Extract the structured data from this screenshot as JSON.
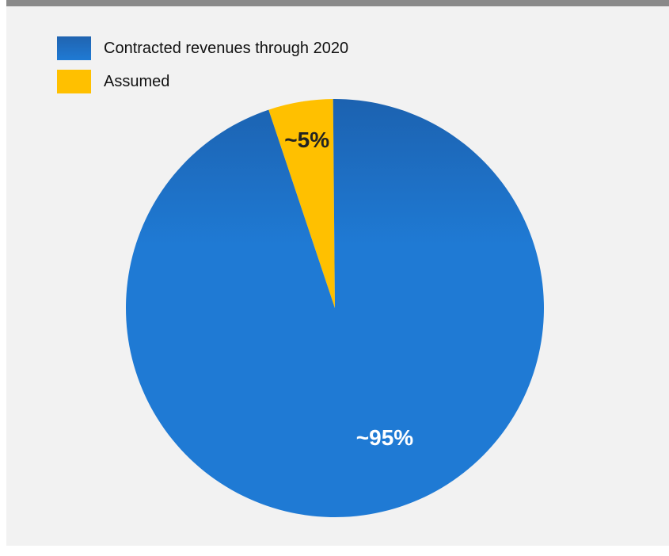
{
  "chart_data": {
    "type": "pie",
    "title": "",
    "slices": [
      {
        "name": "Contracted revenues through 2020",
        "value": 95,
        "label": "~95%",
        "color": "#1f7ad4",
        "label_color": "#ffffff"
      },
      {
        "name": "Assumed",
        "value": 5,
        "label": "~5%",
        "color": "#ffc000",
        "label_color": "#222222"
      }
    ],
    "legend_placement": "top-left"
  }
}
